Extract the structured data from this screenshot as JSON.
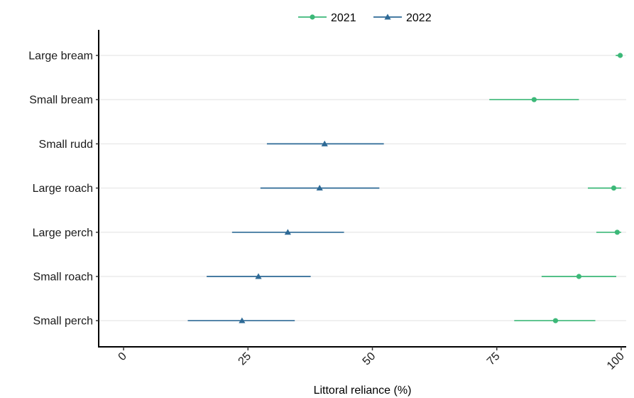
{
  "chart_data": {
    "type": "scatter",
    "categories": [
      "Large bream",
      "Small bream",
      "Small rudd",
      "Large roach",
      "Large perch",
      "Small roach",
      "Small perch"
    ],
    "xlabel": "Littoral reliance (%)",
    "ylabel": "",
    "xlim": [
      -5,
      101
    ],
    "xticks": [
      0,
      25,
      50,
      75,
      100
    ],
    "grid": "horizontal",
    "legend_position": "top",
    "series": [
      {
        "name": "2021",
        "color": "#3cb878",
        "marker": "circle",
        "points": [
          {
            "category": "Large bream",
            "value": 99.8,
            "low": 98.9,
            "high": 100
          },
          {
            "category": "Small bream",
            "value": 82.5,
            "low": 73.5,
            "high": 91.5
          },
          {
            "category": "Large roach",
            "value": 98.5,
            "low": 93.3,
            "high": 100
          },
          {
            "category": "Large perch",
            "value": 99.2,
            "low": 95,
            "high": 100
          },
          {
            "category": "Small roach",
            "value": 91.5,
            "low": 84,
            "high": 99
          },
          {
            "category": "Small perch",
            "value": 86.8,
            "low": 78.5,
            "high": 94.8
          }
        ]
      },
      {
        "name": "2022",
        "color": "#2e6a96",
        "marker": "triangle",
        "points": [
          {
            "category": "Small rudd",
            "value": 40.4,
            "low": 28.8,
            "high": 52.3
          },
          {
            "category": "Large roach",
            "value": 39.4,
            "low": 27.5,
            "high": 51.4
          },
          {
            "category": "Large perch",
            "value": 33,
            "low": 21.8,
            "high": 44.3
          },
          {
            "category": "Small roach",
            "value": 27.1,
            "low": 16.7,
            "high": 37.6
          },
          {
            "category": "Small perch",
            "value": 23.8,
            "low": 12.9,
            "high": 34.4
          }
        ]
      }
    ]
  }
}
